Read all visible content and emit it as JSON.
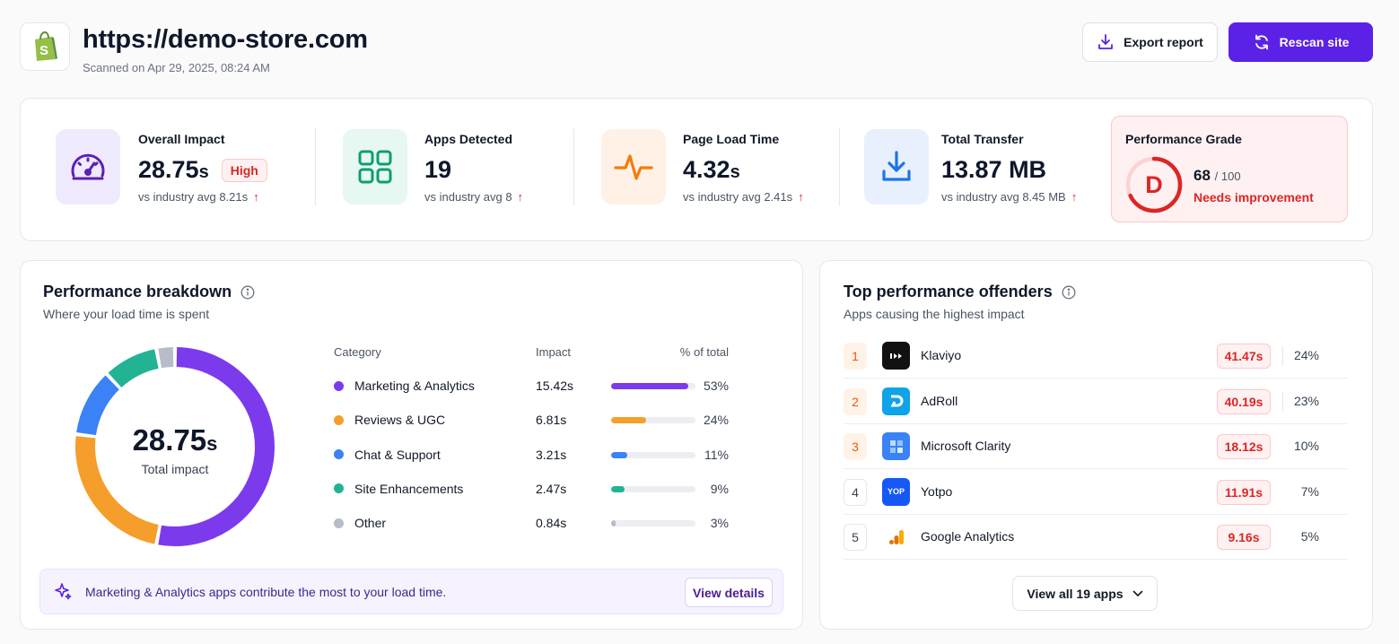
{
  "header": {
    "site_url": "https://demo-store.com",
    "scanned_on": "Scanned on Apr 29, 2025, 08:24 AM",
    "logo_icon": "shopify-bag-icon",
    "export_label": "Export report",
    "rescan_label": "Rescan site",
    "accent_color": "#5b21e6"
  },
  "stats": {
    "overall_impact": {
      "label": "Overall Impact",
      "value": "28.75",
      "unit": "s",
      "badge": "High",
      "sub": "vs industry avg 8.21s",
      "icon": "speedometer-icon"
    },
    "apps_detected": {
      "label": "Apps Detected",
      "value": "19",
      "sub": "vs industry avg 8",
      "icon": "grid-apps-icon"
    },
    "page_load": {
      "label": "Page Load Time",
      "value": "4.32",
      "unit": "s",
      "sub": "vs industry avg 2.41s",
      "icon": "pulse-icon"
    },
    "total_transfer": {
      "label": "Total Transfer",
      "value": "13.87 MB",
      "sub": "vs industry avg 8.45 MB",
      "icon": "download-icon"
    },
    "grade": {
      "label": "Performance Grade",
      "letter": "D",
      "score": "68",
      "out_of": "/ 100",
      "status": "Needs improvement",
      "score_value": 68
    }
  },
  "breakdown": {
    "title": "Performance breakdown",
    "subtitle": "Where your load time is spent",
    "donut_value": "28.75",
    "donut_unit": "s",
    "donut_label": "Total impact",
    "headers": {
      "category": "Category",
      "impact": "Impact",
      "pct": "% of total"
    },
    "rows": [
      {
        "label": "Marketing & Analytics",
        "impact": "15.42s",
        "pct": "53%",
        "value": 53,
        "color": "#7c3aed"
      },
      {
        "label": "Reviews & UGC",
        "impact": "6.81s",
        "pct": "24%",
        "value": 24,
        "color": "#f59e2b"
      },
      {
        "label": "Chat & Support",
        "impact": "3.21s",
        "pct": "11%",
        "value": 11,
        "color": "#3b82f6"
      },
      {
        "label": "Site Enhancements",
        "impact": "2.47s",
        "pct": "9%",
        "value": 9,
        "color": "#22b393"
      },
      {
        "label": "Other",
        "impact": "0.84s",
        "pct": "3%",
        "value": 3,
        "color": "#b6bcc8"
      }
    ],
    "callout_text": "Marketing & Analytics apps contribute the most to your load time.",
    "callout_button": "View details"
  },
  "offenders": {
    "title": "Top performance offenders",
    "subtitle": "Apps causing the highest impact",
    "rows": [
      {
        "rank": "1",
        "name": "Klaviyo",
        "impact": "41.47s",
        "pct": "24%",
        "logo": "klaviyo-logo-icon"
      },
      {
        "rank": "2",
        "name": "AdRoll",
        "impact": "40.19s",
        "pct": "23%",
        "logo": "adroll-logo-icon"
      },
      {
        "rank": "3",
        "name": "Microsoft Clarity",
        "impact": "18.12s",
        "pct": "10%",
        "logo": "clarity-logo-icon"
      },
      {
        "rank": "4",
        "name": "Yotpo",
        "impact": "11.91s",
        "pct": "7%",
        "logo": "yotpo-logo-icon",
        "logo_text": "YOP"
      },
      {
        "rank": "5",
        "name": "Google Analytics",
        "impact": "9.16s",
        "pct": "5%",
        "logo": "google-analytics-logo-icon"
      }
    ],
    "view_all_label": "View all 19 apps"
  }
}
